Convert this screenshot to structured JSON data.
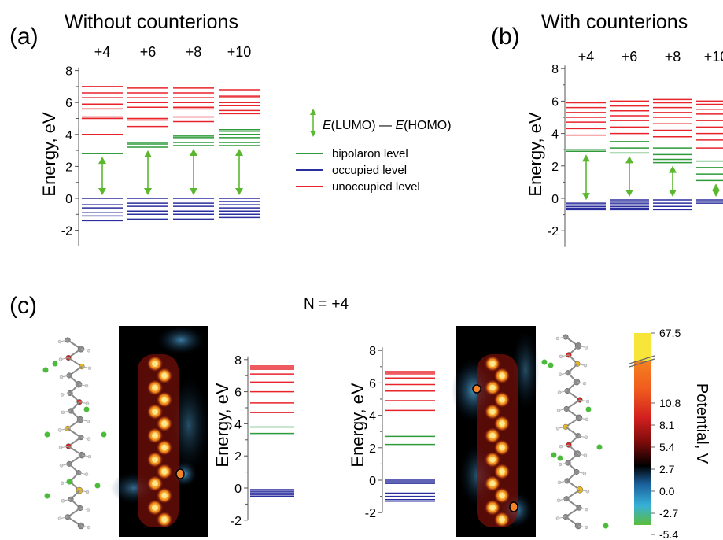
{
  "colors": {
    "bipolaron": "#2e9a3a",
    "occupied": "#2b2f9e",
    "unoccupied": "#e8232a",
    "gap_arrow": "#5ab82f",
    "map_background": "#000000"
  },
  "panel_a": {
    "letter": "(a)",
    "title": "Without counterions",
    "ylabel": "Energy, eV"
  },
  "panel_b": {
    "letter": "(b)",
    "title": "With counterions",
    "ylabel": "Energy, eV"
  },
  "legend": {
    "gap_label_prefix": "E",
    "gap_label_mid": "(LUMO) — ",
    "gap_label_prefix2": "E",
    "gap_label_suffix": "(HOMO)",
    "items": [
      "bipolaron level",
      "occupied level",
      "unoccupied level"
    ]
  },
  "panel_c": {
    "letter": "(c)",
    "title": "N = +4",
    "ylabel": "Energy, eV",
    "colorbar_label": "Potential, V",
    "colorbar_ticks": [
      "67.5",
      "10.8",
      "8.1",
      "5.4",
      "2.7",
      "0.0",
      "-2.7",
      "-5.4"
    ]
  },
  "chart_data": [
    {
      "type": "level-diagram",
      "panel": "(a)",
      "title": "Without counterions",
      "ylabel": "Energy, eV",
      "ylim": [
        -3,
        8
      ],
      "yticks": [
        -2,
        0,
        2,
        4,
        6,
        8
      ],
      "categories": [
        "+4",
        "+6",
        "+8",
        "+10"
      ],
      "columns": [
        {
          "label": "+4",
          "occupied": [
            0.0,
            -0.4,
            -0.6,
            -0.9,
            -1.1,
            -1.4
          ],
          "bipolaron": [
            2.8,
            2.8
          ],
          "unoccupied": [
            4.0,
            5.0,
            5.1,
            5.6,
            5.9,
            6.3,
            6.6,
            7.0
          ]
        },
        {
          "label": "+6",
          "occupied": [
            0.0,
            -0.3,
            -0.5,
            -0.8,
            -1.0,
            -1.3
          ],
          "bipolaron": [
            3.2,
            3.4,
            3.5
          ],
          "unoccupied": [
            4.5,
            4.9,
            5.0,
            5.7,
            6.0,
            6.3,
            6.6,
            6.9
          ]
        },
        {
          "label": "+8",
          "occupied": [
            0.0,
            -0.3,
            -0.5,
            -0.8,
            -1.0,
            -1.3
          ],
          "bipolaron": [
            3.3,
            3.5,
            3.8,
            3.9
          ],
          "unoccupied": [
            4.8,
            5.1,
            5.6,
            5.7,
            6.0,
            6.3,
            6.6,
            6.9
          ]
        },
        {
          "label": "+10",
          "occupied": [
            0.0,
            -0.2,
            -0.4,
            -0.6,
            -0.8,
            -1.0,
            -1.2
          ],
          "bipolaron": [
            3.3,
            3.5,
            3.8,
            4.0,
            4.2,
            4.3
          ],
          "unoccupied": [
            5.3,
            5.5,
            5.8,
            6.0,
            6.3,
            6.4,
            6.8
          ]
        }
      ],
      "gap_arrows": [
        {
          "label": "+4",
          "from": 0.0,
          "to": 2.8
        },
        {
          "label": "+6",
          "from": 0.0,
          "to": 3.2
        },
        {
          "label": "+8",
          "from": 0.0,
          "to": 3.3
        },
        {
          "label": "+10",
          "from": 0.0,
          "to": 3.3
        }
      ]
    },
    {
      "type": "level-diagram",
      "panel": "(b)",
      "title": "With counterions",
      "ylabel": "Energy, eV",
      "ylim": [
        -3,
        8
      ],
      "yticks": [
        -2,
        0,
        2,
        4,
        6,
        8
      ],
      "categories": [
        "+4",
        "+6",
        "+8",
        "+10"
      ],
      "columns": [
        {
          "label": "+4",
          "occupied": [
            -0.3,
            -0.4,
            -0.5,
            -0.6,
            -0.7
          ],
          "bipolaron": [
            2.9,
            3.0
          ],
          "unoccupied": [
            3.9,
            4.3,
            4.7,
            5.0,
            5.3,
            5.6,
            5.9
          ]
        },
        {
          "label": "+6",
          "occupied": [
            -0.1,
            -0.2,
            -0.3,
            -0.4,
            -0.5,
            -0.6,
            -0.7
          ],
          "bipolaron": [
            2.8,
            3.1,
            3.5
          ],
          "unoccupied": [
            4.0,
            4.4,
            4.8,
            5.1,
            5.4,
            5.7,
            6.0
          ]
        },
        {
          "label": "+8",
          "occupied": [
            -0.1,
            -0.3,
            -0.5,
            -0.7
          ],
          "bipolaron": [
            2.2,
            2.4,
            2.7,
            3.1
          ],
          "unoccupied": [
            3.8,
            4.2,
            4.6,
            5.0,
            5.3,
            5.6,
            5.9,
            6.1
          ]
        },
        {
          "label": "+10",
          "occupied": [
            -0.1,
            -0.2,
            -0.3
          ],
          "bipolaron": [
            1.1,
            1.5,
            1.9,
            2.3
          ],
          "unoccupied": [
            3.1,
            3.6,
            4.0,
            4.4,
            4.8,
            5.2,
            5.5,
            5.8,
            6.0
          ]
        }
      ],
      "gap_arrows": [
        {
          "label": "+4",
          "from": -0.3,
          "to": 2.9
        },
        {
          "label": "+6",
          "from": -0.1,
          "to": 2.8
        },
        {
          "label": "+8",
          "from": -0.1,
          "to": 2.2
        },
        {
          "label": "+10",
          "from": -0.1,
          "to": 1.1
        }
      ]
    },
    {
      "type": "level-diagram",
      "panel": "(c) left",
      "ylabel": "Energy, eV",
      "ylim": [
        -2,
        8
      ],
      "yticks": [
        -2,
        0,
        2,
        4,
        6,
        8
      ],
      "columns": [
        {
          "label": "",
          "occupied": [
            -0.1,
            -0.2,
            -0.3,
            -0.4,
            -0.5
          ],
          "bipolaron": [
            3.4,
            3.8
          ],
          "unoccupied": [
            4.7,
            5.3,
            6.0,
            6.6,
            7.1,
            7.4,
            7.5,
            7.6
          ]
        }
      ]
    },
    {
      "type": "level-diagram",
      "panel": "(c) right",
      "ylabel": "Energy, eV",
      "ylim": [
        -2,
        8
      ],
      "yticks": [
        -2,
        0,
        2,
        4,
        6,
        8
      ],
      "columns": [
        {
          "label": "",
          "occupied": [
            0.0,
            -0.1,
            -0.2,
            -0.8,
            -1.0,
            -1.2,
            -1.3
          ],
          "bipolaron": [
            2.2,
            2.7
          ],
          "unoccupied": [
            4.3,
            4.9,
            5.5,
            5.9,
            6.3,
            6.5,
            6.6,
            6.7
          ]
        }
      ]
    }
  ]
}
